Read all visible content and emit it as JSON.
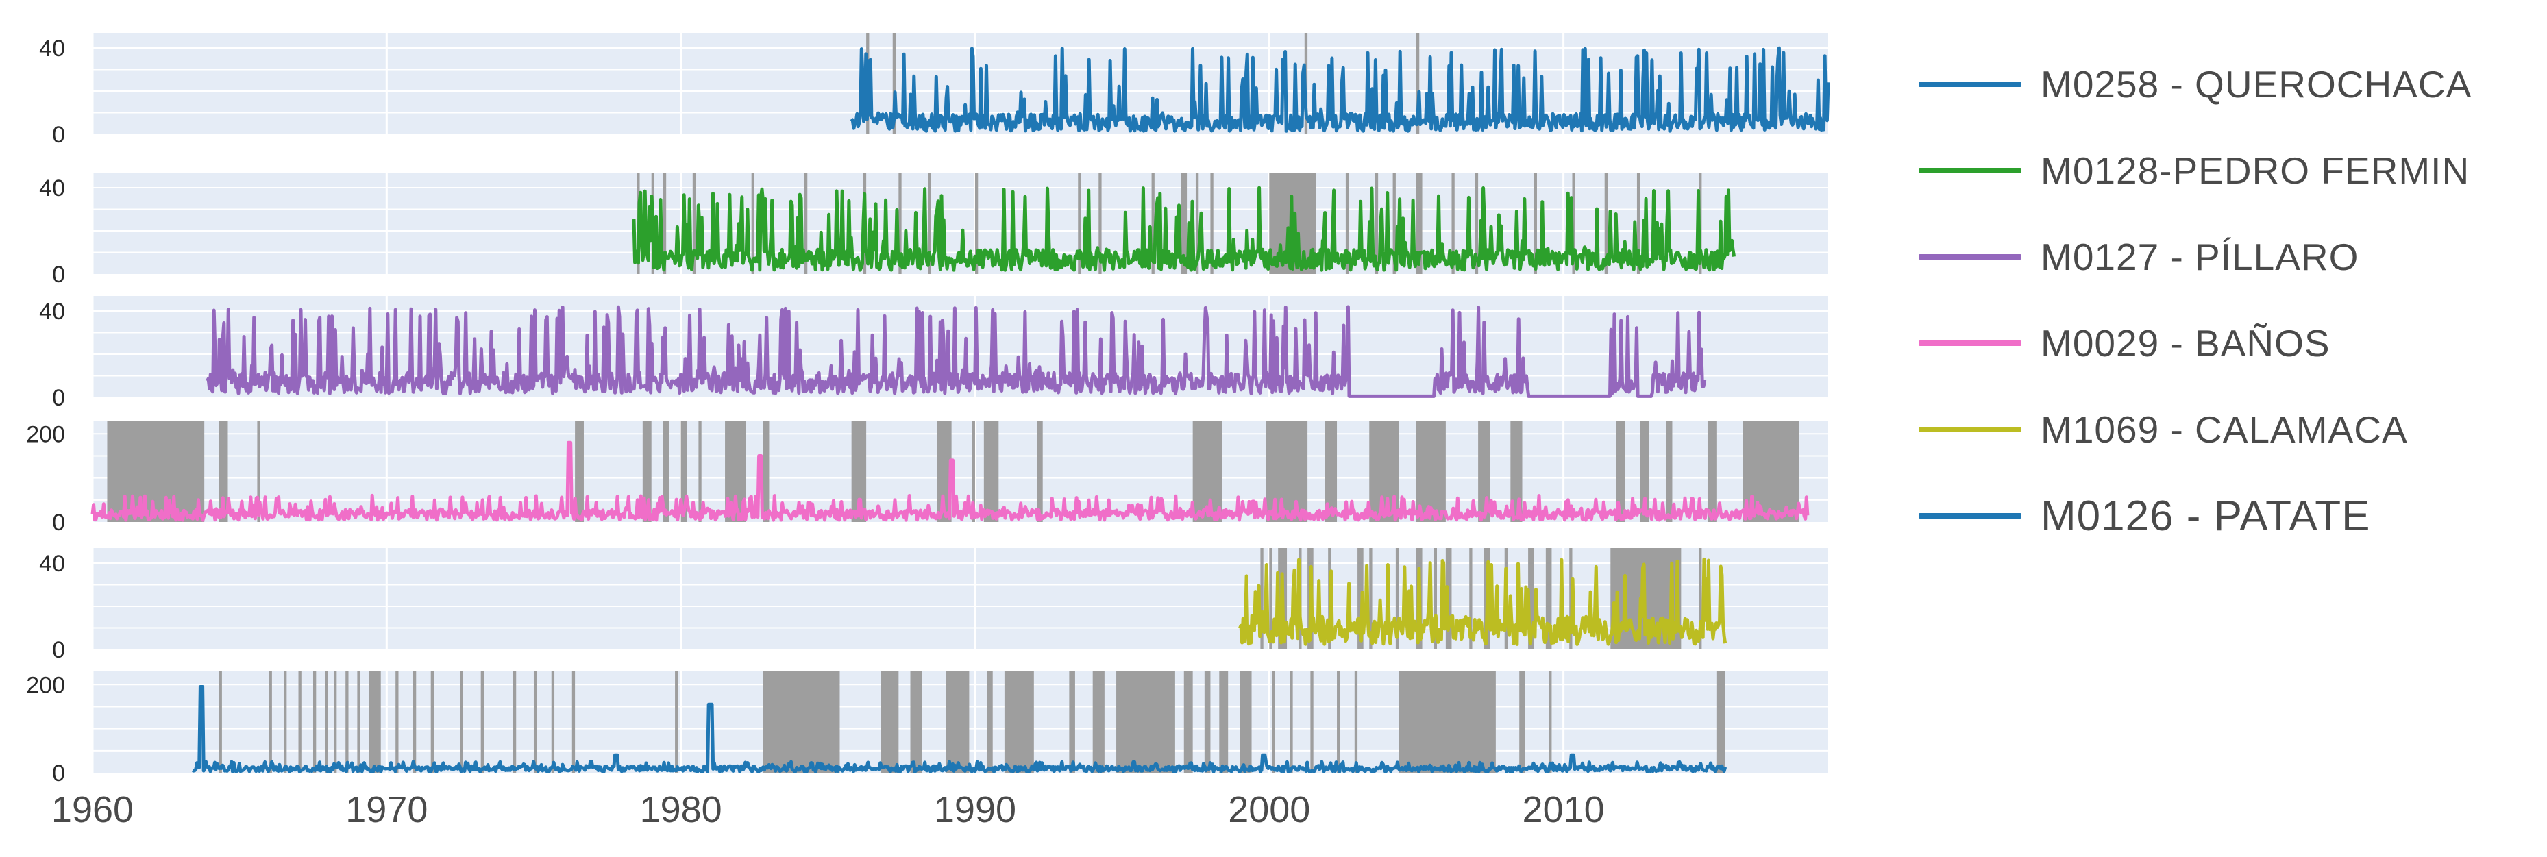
{
  "chart_data": {
    "type": "line",
    "title": "",
    "x_axis": {
      "range": [
        1960,
        2019
      ],
      "ticks": [
        1960,
        1970,
        1980,
        1990,
        2000,
        2010
      ]
    },
    "style": {
      "panel_bg": "#E5ECF6",
      "grid": "#FFFFFF",
      "gap_color": "#9E9E9E"
    },
    "legend_position": "right",
    "series": [
      {
        "name": "M0258 - QUEROCHACA",
        "color": "#1F77B4",
        "start": 1985.8,
        "end": 2019.0,
        "y_ticks": [
          0,
          40
        ],
        "ylim": [
          0,
          47
        ],
        "base": 5,
        "spike_max": 40,
        "gaps": [
          [
            1986.3,
            1986.4
          ],
          [
            1987.2,
            1987.3
          ],
          [
            2001.2,
            2001.3
          ],
          [
            2005.0,
            2005.1
          ]
        ]
      },
      {
        "name": "M0128-PEDRO FERMIN",
        "color": "#2CA02C",
        "start": 1978.4,
        "end": 2015.8,
        "y_ticks": [
          0,
          40
        ],
        "ylim": [
          0,
          47
        ],
        "base": 6,
        "spike_max": 40,
        "gaps": [
          [
            1978.5,
            1978.6
          ],
          [
            1979.0,
            1979.1
          ],
          [
            1979.4,
            1979.5
          ],
          [
            1980.4,
            1980.5
          ],
          [
            1982.4,
            1982.5
          ],
          [
            1984.2,
            1984.3
          ],
          [
            1986.2,
            1986.3
          ],
          [
            1987.4,
            1987.5
          ],
          [
            1988.4,
            1988.5
          ],
          [
            1990.0,
            1990.1
          ],
          [
            1993.5,
            1993.6
          ],
          [
            1994.2,
            1994.3
          ],
          [
            1996.0,
            1996.1
          ],
          [
            1997.0,
            1997.2
          ],
          [
            1997.5,
            1997.6
          ],
          [
            1998.0,
            1998.1
          ],
          [
            2000.0,
            2001.6
          ],
          [
            2002.6,
            2002.7
          ],
          [
            2003.6,
            2003.7
          ],
          [
            2004.2,
            2004.3
          ],
          [
            2005.0,
            2005.2
          ],
          [
            2006.2,
            2006.3
          ],
          [
            2007.0,
            2007.1
          ],
          [
            2009.0,
            2009.1
          ],
          [
            2010.3,
            2010.4
          ],
          [
            2011.4,
            2011.5
          ],
          [
            2012.5,
            2012.6
          ],
          [
            2014.6,
            2014.7
          ]
        ]
      },
      {
        "name": "M0127 - PÍLLARO",
        "color": "#9467BD",
        "start": 1963.9,
        "end": 2014.8,
        "y_ticks": [
          0,
          40
        ],
        "ylim": [
          0,
          47
        ],
        "base": 6,
        "spike_max": 42,
        "quiet": [
          [
            2002.7,
            2005.6
          ],
          [
            2008.8,
            2011.6
          ],
          [
            2012.5,
            2013.0
          ]
        ],
        "gaps": []
      },
      {
        "name": "M0029 - BAÑOS",
        "color": "#F06EC8",
        "start": 1960.0,
        "end": 2018.3,
        "y_ticks": [
          0,
          200
        ],
        "ylim": [
          0,
          230
        ],
        "base": 15,
        "spike_max": 60,
        "peaks": [
          [
            1976.2,
            180
          ],
          [
            1982.7,
            150
          ],
          [
            1989.2,
            140
          ]
        ],
        "gaps": [
          [
            1960.5,
            1963.8
          ],
          [
            1964.3,
            1964.6
          ],
          [
            1965.6,
            1965.7
          ],
          [
            1976.4,
            1976.7
          ],
          [
            1978.7,
            1979.0
          ],
          [
            1979.4,
            1979.6
          ],
          [
            1980.0,
            1980.2
          ],
          [
            1980.6,
            1980.7
          ],
          [
            1981.5,
            1982.2
          ],
          [
            1982.8,
            1983.0
          ],
          [
            1985.8,
            1986.3
          ],
          [
            1988.7,
            1989.2
          ],
          [
            1989.9,
            1990.0
          ],
          [
            1990.3,
            1990.8
          ],
          [
            1992.1,
            1992.3
          ],
          [
            1997.4,
            1998.4
          ],
          [
            1999.9,
            2001.3
          ],
          [
            2001.9,
            2002.3
          ],
          [
            2003.4,
            2004.4
          ],
          [
            2005.0,
            2006.0
          ],
          [
            2007.1,
            2007.5
          ],
          [
            2008.2,
            2008.6
          ],
          [
            2011.8,
            2012.1
          ],
          [
            2012.6,
            2012.9
          ],
          [
            2013.5,
            2013.7
          ],
          [
            2014.9,
            2015.2
          ],
          [
            2016.1,
            2018.0
          ]
        ]
      },
      {
        "name": "M1069 - CALAMACA",
        "color": "#BCBD22",
        "start": 1999.0,
        "end": 2015.5,
        "y_ticks": [
          0,
          40
        ],
        "ylim": [
          0,
          47
        ],
        "base": 8,
        "spike_max": 42,
        "gaps": [
          [
            1999.7,
            1999.8
          ],
          [
            2000.0,
            2000.1
          ],
          [
            2000.3,
            2000.6
          ],
          [
            2001.0,
            2001.1
          ],
          [
            2001.3,
            2001.5
          ],
          [
            2002.0,
            2002.1
          ],
          [
            2003.0,
            2003.2
          ],
          [
            2003.4,
            2003.5
          ],
          [
            2004.3,
            2004.4
          ],
          [
            2005.0,
            2005.2
          ],
          [
            2005.6,
            2005.7
          ],
          [
            2006.0,
            2006.2
          ],
          [
            2006.8,
            2006.9
          ],
          [
            2007.3,
            2007.5
          ],
          [
            2008.0,
            2008.1
          ],
          [
            2008.8,
            2009.0
          ],
          [
            2009.4,
            2009.6
          ],
          [
            2010.2,
            2010.3
          ],
          [
            2011.6,
            2014.0
          ],
          [
            2014.6,
            2014.7
          ]
        ]
      },
      {
        "name": "M0126 - PATATE",
        "color": "#1F77B4",
        "start": 1963.4,
        "end": 2015.5,
        "y_ticks": [
          0,
          200
        ],
        "ylim": [
          0,
          230
        ],
        "base": 8,
        "spike_max": 25,
        "peaks": [
          [
            1963.7,
            195
          ],
          [
            1981.0,
            155
          ],
          [
            1977.8,
            40
          ],
          [
            1999.8,
            40
          ],
          [
            2010.3,
            40
          ]
        ],
        "gaps": [
          [
            1964.3,
            1964.4
          ],
          [
            1966.0,
            1966.1
          ],
          [
            1966.5,
            1966.6
          ],
          [
            1967.0,
            1967.1
          ],
          [
            1967.5,
            1967.6
          ],
          [
            1967.9,
            1968.0
          ],
          [
            1968.2,
            1968.3
          ],
          [
            1968.6,
            1968.7
          ],
          [
            1969.0,
            1969.1
          ],
          [
            1969.4,
            1969.8
          ],
          [
            1970.3,
            1970.4
          ],
          [
            1970.9,
            1971.0
          ],
          [
            1971.5,
            1971.6
          ],
          [
            1972.5,
            1972.6
          ],
          [
            1973.2,
            1973.3
          ],
          [
            1974.3,
            1974.4
          ],
          [
            1975.0,
            1975.1
          ],
          [
            1975.6,
            1975.7
          ],
          [
            1976.3,
            1976.4
          ],
          [
            1979.8,
            1979.9
          ],
          [
            1982.8,
            1985.4
          ],
          [
            1986.8,
            1987.4
          ],
          [
            1987.8,
            1988.2
          ],
          [
            1989.0,
            1989.8
          ],
          [
            1990.4,
            1990.6
          ],
          [
            1991.0,
            1992.0
          ],
          [
            1993.2,
            1993.4
          ],
          [
            1994.0,
            1994.4
          ],
          [
            1994.8,
            1996.8
          ],
          [
            1997.1,
            1997.4
          ],
          [
            1997.8,
            1998.0
          ],
          [
            1998.3,
            1998.6
          ],
          [
            1999.0,
            1999.4
          ],
          [
            2000.1,
            2000.2
          ],
          [
            2000.7,
            2000.8
          ],
          [
            2001.4,
            2001.5
          ],
          [
            2002.3,
            2002.4
          ],
          [
            2002.9,
            2003.0
          ],
          [
            2004.4,
            2007.7
          ],
          [
            2008.5,
            2008.7
          ],
          [
            2009.5,
            2009.6
          ],
          [
            2015.2,
            2015.5
          ]
        ]
      }
    ]
  }
}
